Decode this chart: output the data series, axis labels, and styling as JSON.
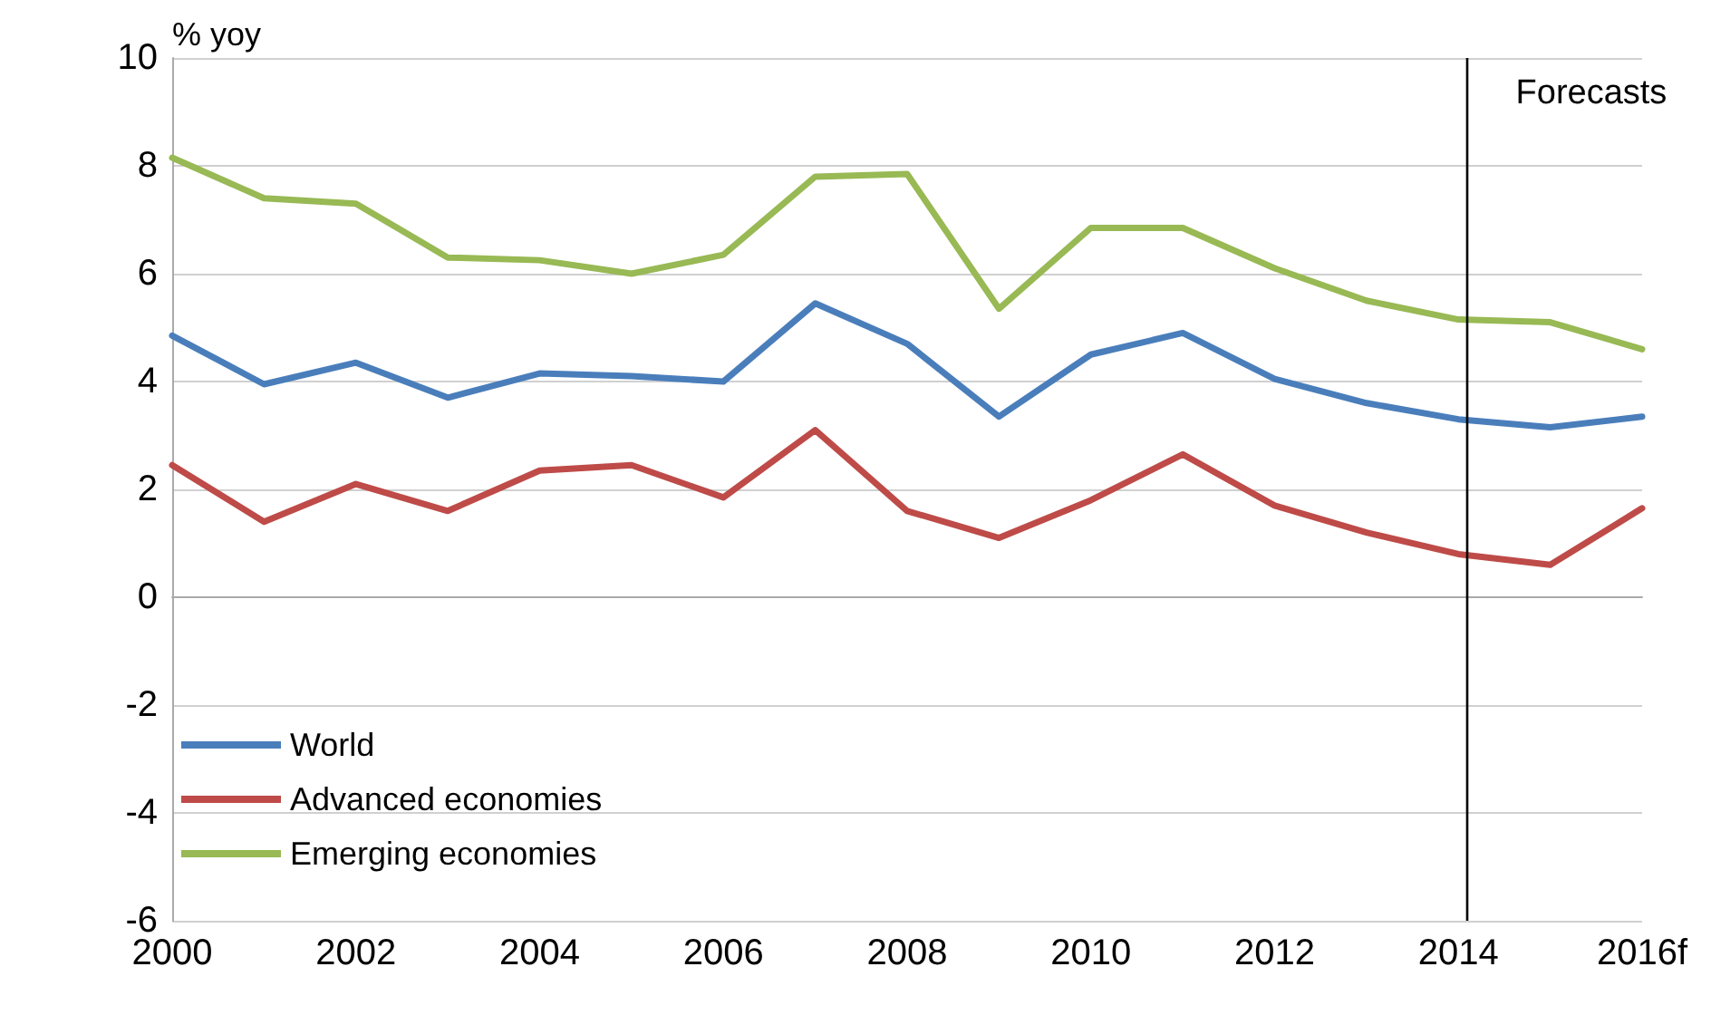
{
  "chart_data": {
    "type": "line",
    "ylabel": "% yoy",
    "x": [
      2000,
      2001,
      2002,
      2003,
      2004,
      2005,
      2006,
      2007,
      2008,
      2009,
      2010,
      2011,
      2012,
      2013,
      2014,
      2015,
      2016
    ],
    "series": [
      {
        "name": "World",
        "color": "#4a7ebb",
        "values": [
          4.85,
          3.95,
          4.35,
          3.7,
          4.15,
          4.1,
          4.0,
          5.45,
          4.7,
          3.35,
          4.5,
          4.9,
          4.05,
          3.6,
          3.3,
          3.15,
          3.35
        ]
      },
      {
        "name": "Advanced economies",
        "color": "#be4b48",
        "values": [
          2.45,
          1.4,
          2.1,
          1.6,
          2.35,
          2.45,
          1.85,
          3.1,
          1.6,
          1.1,
          1.8,
          2.65,
          1.7,
          1.2,
          0.8,
          0.6,
          1.65
        ]
      },
      {
        "name": "Emerging economies",
        "color": "#98b954",
        "values": [
          8.15,
          7.4,
          7.3,
          6.3,
          6.25,
          6.0,
          6.35,
          7.8,
          7.85,
          5.35,
          6.85,
          6.85,
          6.1,
          5.5,
          5.15,
          5.1,
          4.6
        ]
      }
    ],
    "xlim": [
      2000,
      2016
    ],
    "xticks": [
      2000,
      2002,
      2004,
      2006,
      2008,
      2010,
      2012,
      2014,
      {
        "value": 2016,
        "label": "2016f"
      }
    ],
    "ylim": [
      -6,
      10
    ],
    "yticks": [
      -6,
      -4,
      -2,
      0,
      2,
      4,
      6,
      8,
      10
    ],
    "ref_lines": [
      {
        "axis": "x",
        "value": 2014.1,
        "label": "Forecasts",
        "color": "#000000"
      }
    ],
    "grid": "y",
    "legend": "bottom left",
    "marker": "none",
    "line_style": "solid"
  }
}
